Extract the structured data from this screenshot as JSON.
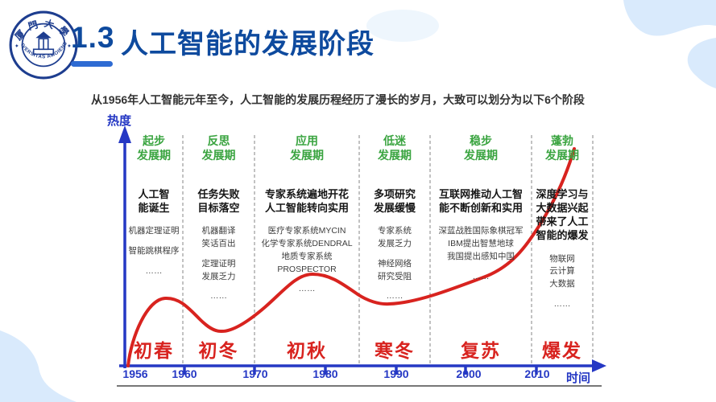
{
  "slide": {
    "logo": {
      "top_text": "厦門大學",
      "bottom_text": "UNIVERSITAS AMOIENSIS"
    },
    "title": {
      "number": "1.3",
      "text": "人工智能的发展阶段"
    },
    "subtitle": "从1956年人工智能元年至今，人工智能的发展历程经历了漫长的岁月，大致可以划分为以下6个阶段",
    "colors": {
      "title_blue": "#0e4a9e",
      "accent_blue": "#2e6bd3",
      "axis_blue": "#2538c4",
      "phase_green": "#3aa440",
      "curve_red": "#d8231f",
      "decoration_blue": "#d9eafc"
    }
  },
  "chart_data": {
    "type": "line",
    "title": "",
    "xlabel": "时间",
    "ylabel": "热度",
    "x_ticks": [
      "1956",
      "1960",
      "1970",
      "1980",
      "1990",
      "2000",
      "2010"
    ],
    "grid": false,
    "legend": "none",
    "curve_qualitative": {
      "description": "AI热度随时间起伏的示意曲线",
      "x_year": [
        1956,
        1962,
        1970,
        1982,
        1992,
        2002,
        2011,
        2016
      ],
      "heat_pct": [
        2,
        30,
        15,
        40,
        26,
        35,
        52,
        95
      ]
    },
    "stages": [
      {
        "phase_lines": [
          "起步",
          "发展期"
        ],
        "headline_lines": [
          "人工智",
          "能诞生"
        ],
        "detail_groups": [
          [
            "机器定理证明"
          ],
          [
            "智能跳棋程序"
          ],
          [
            "……"
          ]
        ],
        "season": "初春"
      },
      {
        "phase_lines": [
          "反思",
          "发展期"
        ],
        "headline_lines": [
          "任务失败",
          "目标落空"
        ],
        "detail_groups": [
          [
            "机器翻译",
            "笑话百出"
          ],
          [
            "定理证明",
            "发展乏力"
          ],
          [
            "……"
          ]
        ],
        "season": "初冬"
      },
      {
        "phase_lines": [
          "应用",
          "发展期"
        ],
        "headline_lines": [
          "专家系统遍地开花",
          "人工智能转向实用"
        ],
        "detail_groups": [
          [
            "医疗专家系统MYCIN",
            "化学专家系统DENDRAL",
            "地质专家系统PROSPECTOR"
          ],
          [
            "……"
          ]
        ],
        "season": "初秋"
      },
      {
        "phase_lines": [
          "低迷",
          "发展期"
        ],
        "headline_lines": [
          "多项研究",
          "发展缓慢"
        ],
        "detail_groups": [
          [
            "专家系统",
            "发展乏力"
          ],
          [
            "神经网络",
            "研究受阻"
          ],
          [
            "……"
          ]
        ],
        "season": "寒冬"
      },
      {
        "phase_lines": [
          "稳步",
          "发展期"
        ],
        "headline_lines": [
          "互联网推动人工智",
          "能不断创新和实用"
        ],
        "detail_groups": [
          [
            "深蓝战胜国际象棋冠军",
            "IBM提出智慧地球",
            "我国提出感知中国"
          ],
          [
            "……"
          ]
        ],
        "season": "复苏"
      },
      {
        "phase_lines": [
          "蓬勃",
          "发展期"
        ],
        "headline_lines": [
          "深度学习与",
          "大数据兴起",
          "带来了人工",
          "智能的爆发"
        ],
        "detail_groups": [
          [
            "物联网",
            "云计算",
            "大数据"
          ],
          [
            "……"
          ]
        ],
        "season": "爆发"
      }
    ]
  }
}
